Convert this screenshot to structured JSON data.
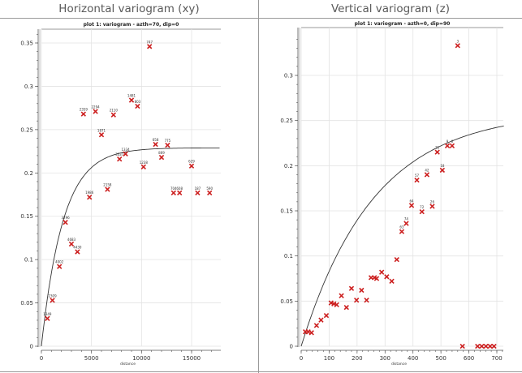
{
  "panels": [
    {
      "title": "Horizontal variogram (xy)"
    },
    {
      "title": "Vertical variogram (z)"
    }
  ],
  "colors": {
    "marker": "#cc1f1f",
    "model": "#333333",
    "grid": "#e3e3e3"
  },
  "chart_data": [
    {
      "type": "scatter",
      "title": "plot 1:  variogram - azth=70, dip=0",
      "xlabel": "distance",
      "ylabel": "",
      "xlim": [
        0,
        18000
      ],
      "ylim": [
        0,
        0.365
      ],
      "xticks": [
        "0",
        "5000",
        "10000",
        "15000"
      ],
      "xtick_values": [
        0,
        5000,
        10000,
        15000
      ],
      "yticks": [
        "0",
        "0.05",
        "0.1",
        "0.15",
        "0.2",
        "0.25",
        "0.3",
        "0.35"
      ],
      "ytick_values": [
        0,
        0.05,
        0.1,
        0.15,
        0.2,
        0.25,
        0.3,
        0.35
      ],
      "grid": true,
      "points": [
        {
          "x": 600,
          "y": 0.032,
          "label": "1349"
        },
        {
          "x": 1100,
          "y": 0.053,
          "label": "2309"
        },
        {
          "x": 1800,
          "y": 0.092,
          "label": "4002"
        },
        {
          "x": 2400,
          "y": 0.143,
          "label": "3296"
        },
        {
          "x": 3000,
          "y": 0.118,
          "label": "4683"
        },
        {
          "x": 3600,
          "y": 0.109,
          "label": "4430"
        },
        {
          "x": 4200,
          "y": 0.268,
          "label": "2359"
        },
        {
          "x": 4800,
          "y": 0.172,
          "label": "1986"
        },
        {
          "x": 5400,
          "y": 0.271,
          "label": "2294"
        },
        {
          "x": 6000,
          "y": 0.244,
          "label": "1871"
        },
        {
          "x": 6600,
          "y": 0.181,
          "label": "2158"
        },
        {
          "x": 7200,
          "y": 0.267,
          "label": "2110"
        },
        {
          "x": 7800,
          "y": 0.216,
          "label": "3337"
        },
        {
          "x": 8400,
          "y": 0.222,
          "label": "1334"
        },
        {
          "x": 9000,
          "y": 0.284,
          "label": "1481"
        },
        {
          "x": 9600,
          "y": 0.277,
          "label": "803"
        },
        {
          "x": 10200,
          "y": 0.207,
          "label": "1238"
        },
        {
          "x": 10800,
          "y": 0.346,
          "label": "747"
        },
        {
          "x": 11400,
          "y": 0.233,
          "label": "658"
        },
        {
          "x": 12000,
          "y": 0.218,
          "label": "869"
        },
        {
          "x": 12600,
          "y": 0.232,
          "label": "775"
        },
        {
          "x": 13200,
          "y": 0.177,
          "label": "704"
        },
        {
          "x": 13800,
          "y": 0.177,
          "label": "608"
        },
        {
          "x": 15000,
          "y": 0.208,
          "label": "629"
        },
        {
          "x": 15600,
          "y": 0.177,
          "label": "187"
        },
        {
          "x": 16800,
          "y": 0.177,
          "label": "590"
        }
      ],
      "model": {
        "type": "exponential-like",
        "sill": 0.229,
        "range_hint": 6500
      }
    },
    {
      "type": "scatter",
      "title": "plot 1:  variogram - azth=0, dip=90",
      "xlabel": "distance",
      "ylabel": "",
      "xlim": [
        0,
        725
      ],
      "ylim": [
        0,
        0.345
      ],
      "xticks": [
        "0",
        "100",
        "200",
        "300",
        "400",
        "500",
        "600",
        "700"
      ],
      "xtick_values": [
        0,
        100,
        200,
        300,
        400,
        500,
        600,
        700
      ],
      "yticks": [
        "0",
        "0.05",
        "0.1",
        "0.15",
        "0.2",
        "0.25",
        "0.3"
      ],
      "ytick_values": [
        0,
        0.05,
        0.1,
        0.15,
        0.2,
        0.25,
        0.3
      ],
      "grid": true,
      "points": [
        {
          "x": 15,
          "y": 0.016,
          "label": ""
        },
        {
          "x": 25,
          "y": 0.016,
          "label": ""
        },
        {
          "x": 37,
          "y": 0.015,
          "label": ""
        },
        {
          "x": 55,
          "y": 0.023,
          "label": ""
        },
        {
          "x": 71,
          "y": 0.029,
          "label": ""
        },
        {
          "x": 90,
          "y": 0.034,
          "label": ""
        },
        {
          "x": 107,
          "y": 0.048,
          "label": ""
        },
        {
          "x": 117,
          "y": 0.047,
          "label": ""
        },
        {
          "x": 127,
          "y": 0.046,
          "label": ""
        },
        {
          "x": 144,
          "y": 0.056,
          "label": ""
        },
        {
          "x": 162,
          "y": 0.043,
          "label": ""
        },
        {
          "x": 180,
          "y": 0.064,
          "label": ""
        },
        {
          "x": 198,
          "y": 0.051,
          "label": ""
        },
        {
          "x": 216,
          "y": 0.062,
          "label": ""
        },
        {
          "x": 234,
          "y": 0.051,
          "label": ""
        },
        {
          "x": 250,
          "y": 0.076,
          "label": ""
        },
        {
          "x": 262,
          "y": 0.076,
          "label": ""
        },
        {
          "x": 270,
          "y": 0.075,
          "label": ""
        },
        {
          "x": 288,
          "y": 0.082,
          "label": ""
        },
        {
          "x": 306,
          "y": 0.077,
          "label": ""
        },
        {
          "x": 324,
          "y": 0.072,
          "label": ""
        },
        {
          "x": 342,
          "y": 0.096,
          "label": ""
        },
        {
          "x": 360,
          "y": 0.127,
          "label": "63"
        },
        {
          "x": 376,
          "y": 0.136,
          "label": "74"
        },
        {
          "x": 395,
          "y": 0.156,
          "label": "64"
        },
        {
          "x": 414,
          "y": 0.184,
          "label": "57"
        },
        {
          "x": 432,
          "y": 0.149,
          "label": "72"
        },
        {
          "x": 450,
          "y": 0.19,
          "label": "42"
        },
        {
          "x": 469,
          "y": 0.155,
          "label": "26"
        },
        {
          "x": 487,
          "y": 0.215,
          "label": "21"
        },
        {
          "x": 505,
          "y": 0.195,
          "label": "18"
        },
        {
          "x": 523,
          "y": 0.222,
          "label": "9"
        },
        {
          "x": 540,
          "y": 0.222,
          "label": "6"
        },
        {
          "x": 560,
          "y": 0.333,
          "label": "3"
        },
        {
          "x": 577,
          "y": 0.0,
          "label": ""
        },
        {
          "x": 631,
          "y": 0.0,
          "label": ""
        },
        {
          "x": 646,
          "y": 0.0,
          "label": ""
        },
        {
          "x": 661,
          "y": 0.0,
          "label": ""
        },
        {
          "x": 676,
          "y": 0.0,
          "label": ""
        },
        {
          "x": 690,
          "y": 0.0,
          "label": ""
        }
      ],
      "model": {
        "type": "exponential-like",
        "sill": 0.26,
        "range_hint": 780
      }
    }
  ]
}
